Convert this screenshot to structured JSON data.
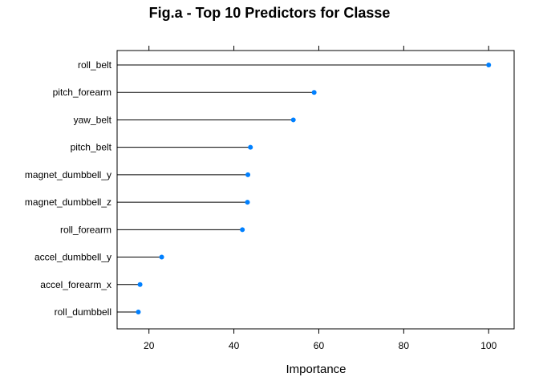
{
  "chart_data": {
    "type": "dot",
    "title": "Fig.a - Top 10 Predictors for Classe",
    "xlabel": "Importance",
    "ylabel": "",
    "categories": [
      "roll_belt",
      "pitch_forearm",
      "yaw_belt",
      "pitch_belt",
      "magnet_dumbbell_y",
      "magnet_dumbbell_z",
      "roll_forearm",
      "accel_dumbbell_y",
      "accel_forearm_x",
      "roll_dumbbell"
    ],
    "values": [
      100,
      58.9,
      54.0,
      43.9,
      43.3,
      43.2,
      42.0,
      23.0,
      17.9,
      17.5
    ],
    "xlim": [
      12.5,
      106.0
    ],
    "xticks": [
      20,
      40,
      60,
      80,
      100
    ],
    "xtick_labels": [
      "20",
      "40",
      "60",
      "80",
      "100"
    ],
    "grid": false,
    "colors": {
      "point": "#0080ff",
      "line": "#000000",
      "frame": "#000000"
    }
  }
}
